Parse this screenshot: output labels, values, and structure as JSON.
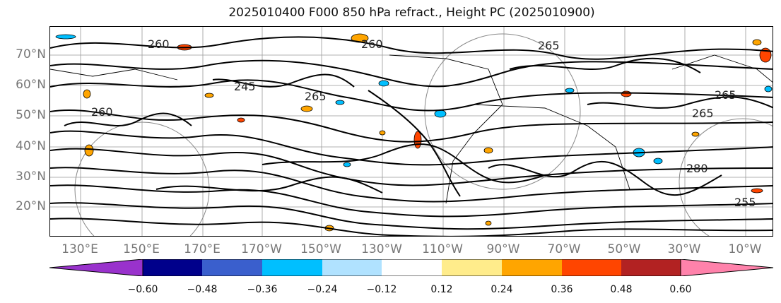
{
  "title": "2025010400 F000 850 hPa refract., Height PC (2025010900)",
  "lat_labels": [
    "70°N",
    "60°N",
    "50°N",
    "40°N",
    "30°N",
    "20°N"
  ],
  "lon_labels": [
    "130°E",
    "150°E",
    "170°E",
    "170°W",
    "150°W",
    "130°W",
    "110°W",
    "90°W",
    "70°W",
    "50°W",
    "30°W",
    "10°W"
  ],
  "contour_labels": [
    "260",
    "265",
    "245",
    "265",
    "260",
    "265",
    "265",
    "280",
    "260",
    "255"
  ],
  "colorbar": {
    "ticks": [
      "−0.60",
      "−0.48",
      "−0.36",
      "−0.24",
      "−0.12",
      "0.12",
      "0.24",
      "0.36",
      "0.48",
      "0.60"
    ],
    "colors": [
      "#9932cc",
      "#00008b",
      "#3a5fcd",
      "#00bfff",
      "#b0e2ff",
      "#ffffff",
      "#ffec8b",
      "#ffa500",
      "#ff4500",
      "#b22222",
      "#ff82ab"
    ]
  }
}
